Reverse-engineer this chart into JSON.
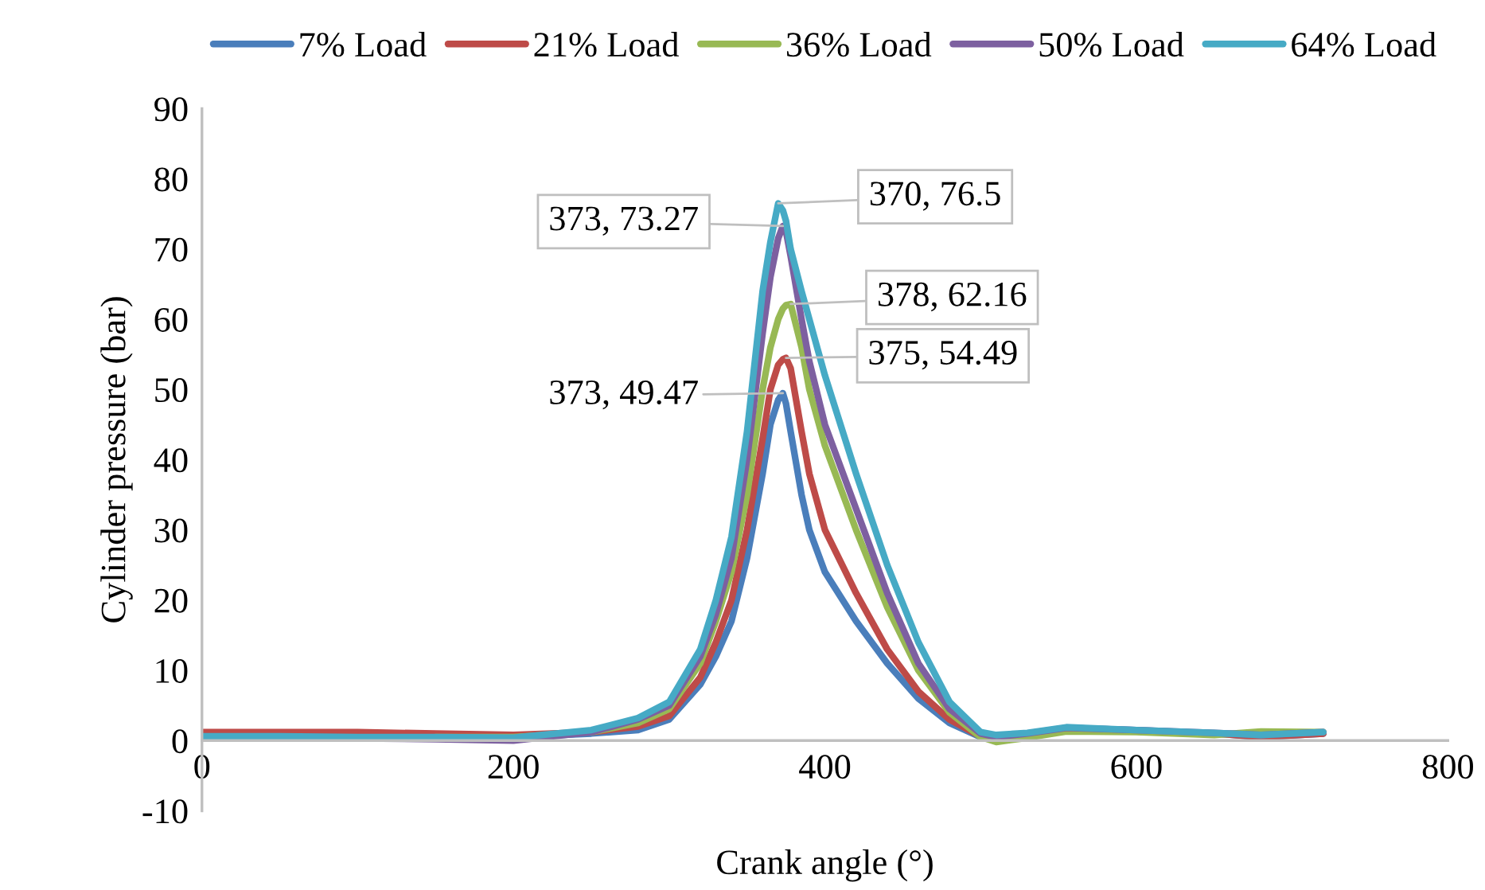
{
  "chart_data": {
    "type": "line",
    "xlabel": "Crank angle (°)",
    "ylabel": "Cylinder pressure (bar)",
    "x": [
      0,
      50,
      100,
      150,
      200,
      250,
      280,
      300,
      320,
      330,
      340,
      350,
      360,
      365,
      370,
      373,
      375,
      378,
      385,
      390,
      400,
      420,
      440,
      460,
      480,
      500,
      510,
      530,
      555,
      600,
      650,
      680,
      720
    ],
    "series": [
      {
        "name": "7% Load",
        "color": "#4a7ebb",
        "values": [
          1,
          1,
          1,
          0.8,
          0.5,
          1,
          1.5,
          3,
          8,
          12,
          17,
          26,
          38,
          45,
          48.5,
          49.47,
          48,
          44,
          35,
          30,
          24,
          17,
          11,
          6,
          2.5,
          0.5,
          0.5,
          1,
          1.8,
          1.5,
          1,
          0.5,
          1
        ]
      },
      {
        "name": "21% Load",
        "color": "#be4b48",
        "values": [
          1.2,
          1.2,
          1.2,
          1,
          0.8,
          1.2,
          2,
          3.5,
          9,
          14,
          20,
          30,
          43,
          50,
          53.5,
          54.3,
          54.49,
          53,
          44,
          38,
          30,
          21,
          13,
          7,
          3,
          0.6,
          0.3,
          0.8,
          1.5,
          1.3,
          1,
          0.5,
          1
        ]
      },
      {
        "name": "36% Load",
        "color": "#98b954",
        "values": [
          null,
          null,
          null,
          0.5,
          0.5,
          1.2,
          2.5,
          4.5,
          11,
          17,
          24,
          35,
          50,
          56,
          60,
          61.5,
          62,
          62.16,
          56,
          50,
          42,
          30,
          19,
          10,
          4,
          0.5,
          -0.2,
          0.4,
          1.3,
          1.2,
          0.8,
          1.3,
          1.2
        ]
      },
      {
        "name": "50% Load",
        "color": "#7d60a0",
        "values": [
          0.5,
          0.5,
          0.3,
          0.2,
          0,
          1.2,
          3,
          5,
          12,
          18,
          26,
          40,
          58,
          66,
          71.5,
          73.27,
          72.5,
          69,
          60,
          54,
          45,
          33,
          21,
          11,
          4.5,
          1,
          0.5,
          1,
          1.8,
          1.5,
          1.1,
          0.8,
          1.2
        ]
      },
      {
        "name": "64% Load",
        "color": "#46aac5",
        "values": [
          0.6,
          0.6,
          0.5,
          0.5,
          0.4,
          1.5,
          3.2,
          5.5,
          13,
          20,
          29,
          44,
          64,
          71,
          76.5,
          75.5,
          74,
          70,
          64,
          60,
          52,
          38,
          25,
          14,
          5.5,
          1.2,
          0.8,
          1.1,
          1.9,
          1.5,
          1.1,
          0.8,
          1.2
        ]
      }
    ],
    "annotations": [
      {
        "text": "373, 73.27",
        "x": 373,
        "y": 73.27
      },
      {
        "text": "370, 76.5",
        "x": 370,
        "y": 76.5
      },
      {
        "text": "378, 62.16",
        "x": 378,
        "y": 62.16
      },
      {
        "text": "375, 54.49",
        "x": 375,
        "y": 54.49
      },
      {
        "text": "373, 49.47",
        "x": 373,
        "y": 49.47
      }
    ],
    "xlim": [
      0,
      800
    ],
    "xticks": [
      0,
      200,
      400,
      600,
      800
    ],
    "ylim": [
      -10,
      90
    ],
    "yticks": [
      -10,
      0,
      10,
      20,
      30,
      40,
      50,
      60,
      70,
      80,
      90
    ],
    "grid": false,
    "legend": "top",
    "marker": "none",
    "line_style": "solid"
  }
}
